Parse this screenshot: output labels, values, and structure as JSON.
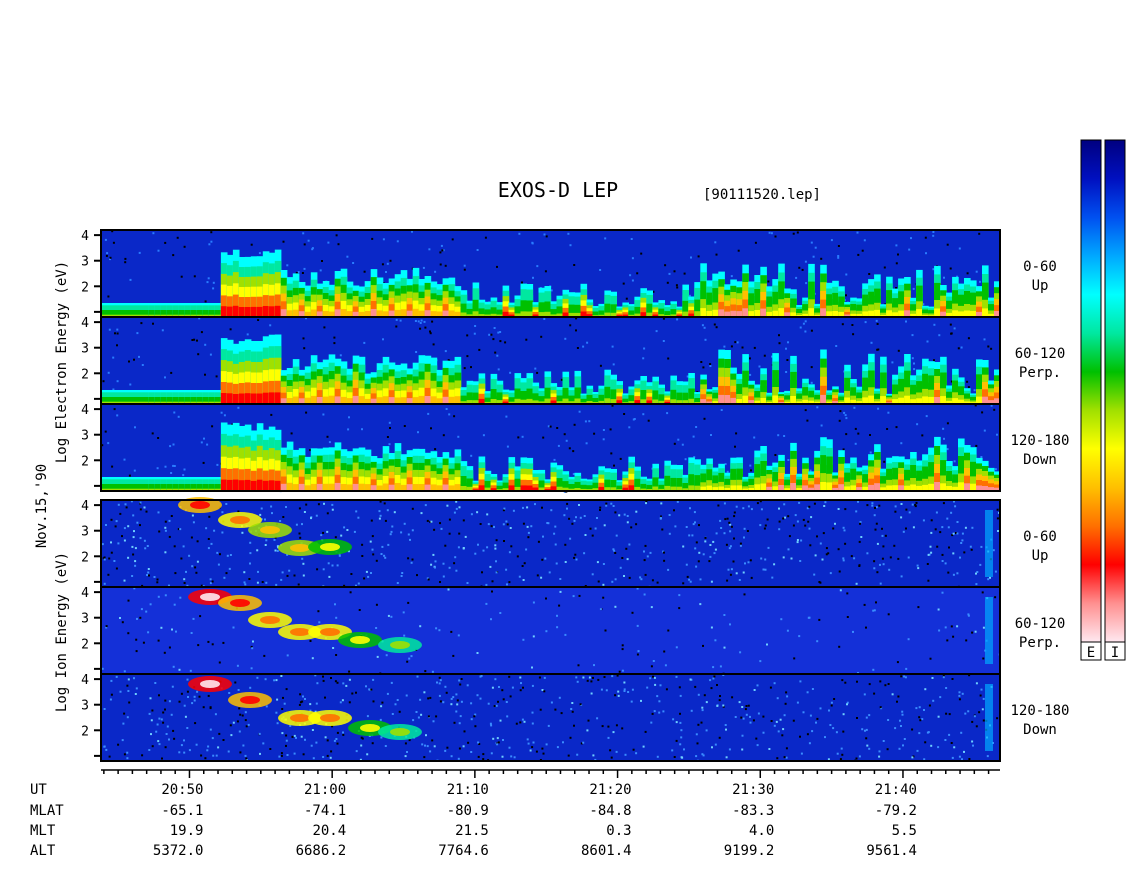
{
  "chart_data": {
    "type": "heatmap",
    "title": "EXOS-D LEP",
    "file_label": "[90111520.lep]",
    "date_label": "Nov.15,'90",
    "electron_ylabel": "Log  Electron  Energy (eV)",
    "ion_ylabel": "Log  Ion  Energy (eV)",
    "yticks": [
      1,
      2,
      3,
      4
    ],
    "ylim": [
      0.8,
      4.2
    ],
    "panels": [
      {
        "species": "electron",
        "range": "0-60",
        "direction": "Up"
      },
      {
        "species": "electron",
        "range": "60-120",
        "direction": "Perp."
      },
      {
        "species": "electron",
        "range": "120-180",
        "direction": "Down"
      },
      {
        "species": "ion",
        "range": "0-60",
        "direction": "Up"
      },
      {
        "species": "ion",
        "range": "60-120",
        "direction": "Perp."
      },
      {
        "species": "ion",
        "range": "120-180",
        "direction": "Down"
      }
    ],
    "colorbars": {
      "labels": [
        "E",
        "I"
      ],
      "colors": [
        "#ffe8f0",
        "#ff9090",
        "#ff0000",
        "#ff7000",
        "#ffc000",
        "#ffff00",
        "#a0e000",
        "#00c000",
        "#00e8a0",
        "#00ffff",
        "#00a8ff",
        "#0050f0",
        "#0010c0",
        "#000080"
      ]
    },
    "x_axis": {
      "xlim_minutes": [
        20.73,
        21.78
      ],
      "row_labels": [
        "UT",
        "MLAT",
        "MLT",
        "ALT"
      ],
      "ticks": [
        {
          "UT": "20:50",
          "MLAT": "-65.1",
          "MLT": "19.9",
          "ALT": "5372.0"
        },
        {
          "UT": "21:00",
          "MLAT": "-74.1",
          "MLT": "20.4",
          "ALT": "6686.2"
        },
        {
          "UT": "21:10",
          "MLAT": "-80.9",
          "MLT": "21.5",
          "ALT": "7764.6"
        },
        {
          "UT": "21:20",
          "MLAT": "-84.8",
          "MLT": "0.3",
          "ALT": "8601.4"
        },
        {
          "UT": "21:30",
          "MLAT": "-83.3",
          "MLT": "4.0",
          "ALT": "9199.2"
        },
        {
          "UT": "21:40",
          "MLAT": "-79.2",
          "MLT": "5.5",
          "ALT": "9561.4"
        }
      ]
    }
  }
}
